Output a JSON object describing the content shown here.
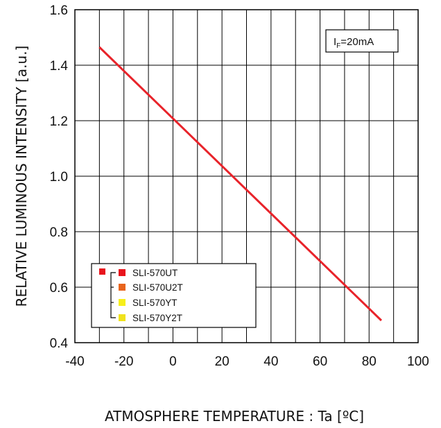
{
  "chart_data": {
    "type": "line",
    "xlabel": "ATMOSPHERE TEMPERATURE : Ta [ºC]",
    "ylabel": "RELATIVE LUMINOUS INTENSITY [a.u.]",
    "xlim": [
      -40,
      100
    ],
    "ylim": [
      0.4,
      1.6
    ],
    "x_ticks": [
      "-40",
      "-20",
      "0",
      "20",
      "40",
      "60",
      "80",
      "100"
    ],
    "y_ticks": [
      "0.4",
      "0.6",
      "0.8",
      "1.0",
      "1.2",
      "1.4",
      "1.6"
    ],
    "grid": true,
    "annotation": {
      "main": "I",
      "sub": "F",
      "rest": "=20mA"
    },
    "series": [
      {
        "x": [
          -30,
          85
        ],
        "y": [
          1.465,
          0.48
        ],
        "color": "#e8232a"
      }
    ],
    "legend": {
      "placement": "bottom-left",
      "items": [
        {
          "label": "SLI-570UT",
          "color": "#e8141c"
        },
        {
          "label": "SLI-570U2T",
          "color": "#e8641c"
        },
        {
          "label": "SLI-570YT",
          "color": "#f7ef1c"
        },
        {
          "label": "SLI-570Y2T",
          "color": "#f0e21c"
        }
      ],
      "group_marker_color": "#e8141c"
    }
  }
}
